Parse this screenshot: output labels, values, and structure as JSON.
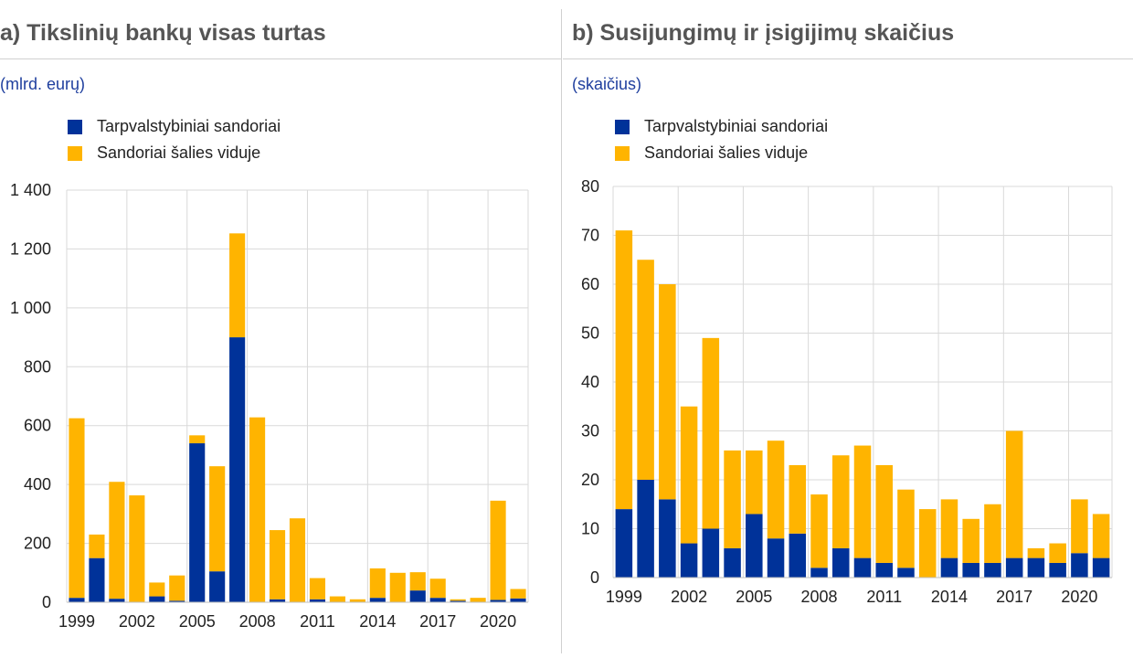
{
  "colors": {
    "cross_border": "#003299",
    "domestic": "#ffb400",
    "grid": "#d9d9d9"
  },
  "chart_data": [
    {
      "type": "bar",
      "stacked": true,
      "title": "a) Tikslinių bankų visas turtas",
      "unit_label": "(mlrd. eurų)",
      "ylim": [
        0,
        1400
      ],
      "yticks": [
        0,
        200,
        400,
        600,
        800,
        1000,
        1200,
        1400
      ],
      "ytick_labels": [
        "0",
        "200",
        "400",
        "600",
        "800",
        "1 000",
        "1 200",
        "1 400"
      ],
      "x": [
        1999,
        2000,
        2001,
        2002,
        2003,
        2004,
        2005,
        2006,
        2007,
        2008,
        2009,
        2010,
        2011,
        2012,
        2013,
        2014,
        2015,
        2016,
        2017,
        2018,
        2019,
        2020,
        2021
      ],
      "xtick_labels": [
        "1999",
        "2002",
        "2005",
        "2008",
        "2011",
        "2014",
        "2017",
        "2020"
      ],
      "grid": true,
      "legend_position": "top-left",
      "series": [
        {
          "name": "Tarpvalstybiniai sandoriai",
          "values": [
            15,
            150,
            12,
            0,
            20,
            5,
            540,
            105,
            900,
            0,
            10,
            0,
            10,
            0,
            0,
            15,
            0,
            40,
            15,
            5,
            0,
            8,
            13
          ]
        },
        {
          "name": "Sandoriai šalies viduje",
          "values": [
            610,
            80,
            397,
            363,
            47,
            86,
            27,
            357,
            353,
            628,
            235,
            285,
            72,
            20,
            10,
            100,
            100,
            62,
            65,
            5,
            15,
            337,
            32
          ]
        }
      ]
    },
    {
      "type": "bar",
      "stacked": true,
      "title": "b) Susijungimų ir įsigijimų skaičius",
      "unit_label": "(skaičius)",
      "ylim": [
        0,
        80
      ],
      "yticks": [
        0,
        10,
        20,
        30,
        40,
        50,
        60,
        70,
        80
      ],
      "ytick_labels": [
        "0",
        "10",
        "20",
        "30",
        "40",
        "50",
        "60",
        "70",
        "80"
      ],
      "x": [
        1999,
        2000,
        2001,
        2002,
        2003,
        2004,
        2005,
        2006,
        2007,
        2008,
        2009,
        2010,
        2011,
        2012,
        2013,
        2014,
        2015,
        2016,
        2017,
        2018,
        2019,
        2020,
        2021
      ],
      "xtick_labels": [
        "1999",
        "2002",
        "2005",
        "2008",
        "2011",
        "2014",
        "2017",
        "2020"
      ],
      "grid": true,
      "legend_position": "top-left",
      "series": [
        {
          "name": "Tarpvalstybiniai sandoriai",
          "values": [
            14,
            20,
            16,
            7,
            10,
            6,
            13,
            8,
            9,
            2,
            6,
            4,
            3,
            2,
            0,
            4,
            3,
            3,
            4,
            4,
            3,
            5,
            4
          ]
        },
        {
          "name": "Sandoriai šalies viduje",
          "values": [
            57,
            45,
            44,
            28,
            39,
            20,
            13,
            20,
            14,
            15,
            19,
            23,
            20,
            16,
            14,
            12,
            9,
            12,
            26,
            2,
            4,
            11,
            9
          ]
        }
      ]
    }
  ]
}
